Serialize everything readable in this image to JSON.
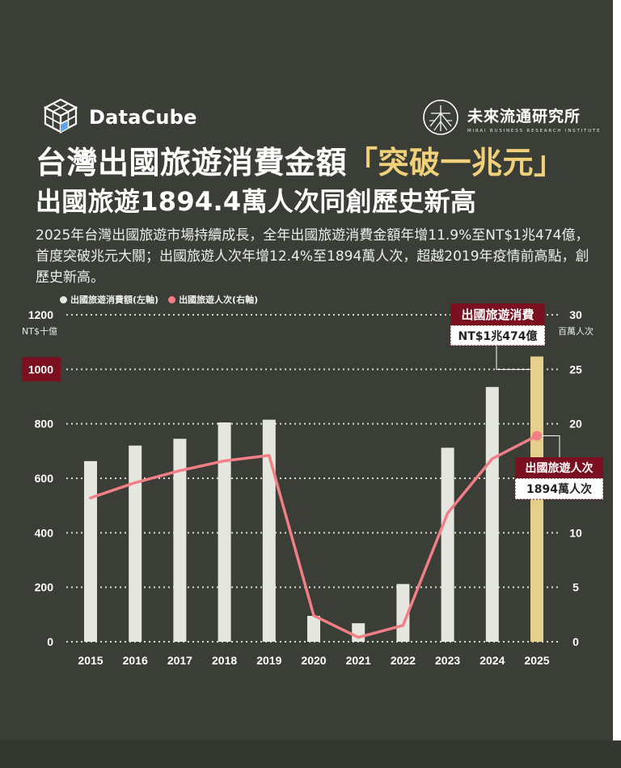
{
  "brand": {
    "name": "DataCube"
  },
  "org": {
    "name": "未來流通研究所",
    "subtitle": "MIRAI BUSINESS RESEARCH INSTITUTE"
  },
  "title": {
    "line1_prefix": "台灣出國旅遊消費金額",
    "line1_highlight": "「突破一兆元」",
    "line2": "出國旅遊1894.4萬人次同創歷史新高"
  },
  "description": "2025年台灣出國旅遊市場持續成長，全年出國旅遊消費金額年增11.9%至NT$1兆474億，首度突破兆元大關；出國旅遊人次年增12.4%至1894萬人次，超越2019年疫情前高點，創歷史新高。",
  "colors": {
    "background": "#3b3e36",
    "bar": "#e6e6e1",
    "bar_highlight": "#e6cf8a",
    "line": "#f27e86",
    "callout": "#7a1020",
    "title_highlight": "#f0d17a"
  },
  "chart_data": {
    "type": "bar",
    "categories": [
      "2015",
      "2016",
      "2017",
      "2018",
      "2019",
      "2020",
      "2021",
      "2022",
      "2023",
      "2024",
      "2025"
    ],
    "series": [
      {
        "name": "出國旅遊消費額(左軸)",
        "type": "bar",
        "axis": "left",
        "values": [
          663,
          720,
          745,
          805,
          815,
          95,
          68,
          212,
          712,
          935,
          1047
        ]
      },
      {
        "name": "出國旅遊人次(右軸)",
        "type": "line",
        "axis": "right",
        "values": [
          13.2,
          14.6,
          15.7,
          16.6,
          17.1,
          2.4,
          0.4,
          1.5,
          11.8,
          16.8,
          18.9
        ]
      }
    ],
    "y_left": {
      "min": 0,
      "max": 1200,
      "ticks": [
        0,
        200,
        400,
        600,
        800,
        1000,
        1200
      ],
      "unit": "NT$十億"
    },
    "y_right": {
      "min": 0,
      "max": 30,
      "ticks": [
        0,
        5,
        10,
        15,
        20,
        25,
        30
      ],
      "unit": "百萬人次"
    },
    "highlight_left_tick": 1000,
    "grid": true,
    "legend_position": "top-left",
    "annotations": [
      {
        "target": "bar",
        "index": 10,
        "title": "出國旅遊消費",
        "value": "NT$1兆474億"
      },
      {
        "target": "line",
        "index": 10,
        "title": "出國旅遊人次",
        "value": "1894萬人次"
      }
    ]
  }
}
